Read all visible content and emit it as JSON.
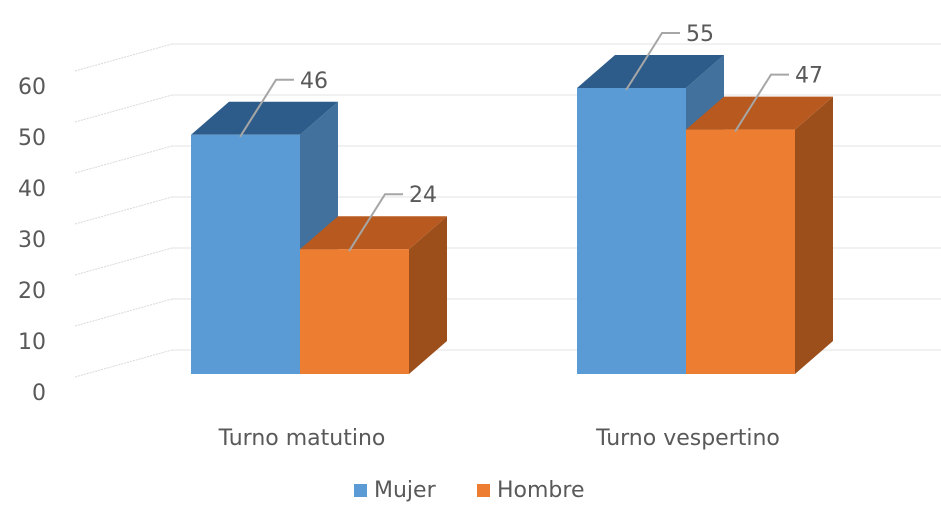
{
  "chart_data": {
    "type": "bar",
    "categories": [
      "Turno matutino",
      "Turno vespertino"
    ],
    "series": [
      {
        "name": "Mujer",
        "values": [
          46,
          55
        ],
        "color": "#5B9BD5",
        "side_color": "#41719C",
        "top_color": "#2E5C8A"
      },
      {
        "name": "Hombre",
        "values": [
          24,
          47
        ],
        "color": "#ED7D31",
        "side_color": "#9C4F1B",
        "top_color": "#B85A1F"
      }
    ],
    "y_ticks": [
      0,
      10,
      20,
      30,
      40,
      50,
      60
    ],
    "ylim": [
      0,
      60
    ],
    "grid": true,
    "legend_position": "bottom",
    "style": "3d-clustered-column"
  }
}
